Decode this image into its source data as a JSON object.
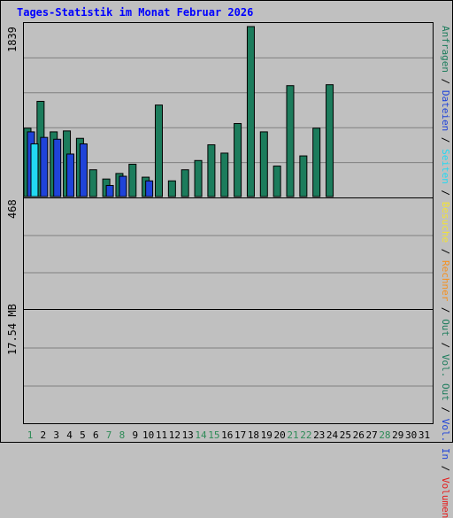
{
  "title": "Tages-Statistik im Monat Februar 2026",
  "colors": {
    "anfragen": "#1c7c5c",
    "dateien": "#1f43d9",
    "seiten": "#22d9f2",
    "besuche": "#f2e236",
    "rechner": "#f5901f",
    "volumen": "#e51b1b",
    "weekend_label": "#2e8b57",
    "weekday_label": "#000000"
  },
  "top_panel": {
    "max_label": "1839",
    "legend": [
      {
        "text": "Anfragen",
        "color": "#1c7c5c"
      },
      {
        "text": " / ",
        "color": "#000000"
      },
      {
        "text": "Dateien",
        "color": "#1f43d9"
      },
      {
        "text": " / ",
        "color": "#000000"
      },
      {
        "text": "Seiten",
        "color": "#22d9f2"
      },
      {
        "text": " / ",
        "color": "#000000"
      },
      {
        "text": "Besuche",
        "color": "#f2e236"
      },
      {
        "text": " / ",
        "color": "#000000"
      },
      {
        "text": "Rechner",
        "color": "#f5901f"
      },
      {
        "text": " / ",
        "color": "#000000"
      },
      {
        "text": "Out",
        "color": "#1c7c5c"
      },
      {
        "text": " / ",
        "color": "#000000"
      },
      {
        "text": "Vol. Out",
        "color": "#1c7c5c"
      },
      {
        "text": " / ",
        "color": "#000000"
      },
      {
        "text": "Vol. In",
        "color": "#1f43d9"
      },
      {
        "text": " / ",
        "color": "#000000"
      },
      {
        "text": "Volumen",
        "color": "#e51b1b"
      }
    ]
  },
  "mid_panel": {
    "max_label": "468"
  },
  "bottom_panel": {
    "max_label": "17.54 MB"
  },
  "chart_data": {
    "type": "bar",
    "title": "Tages-Statistik im Monat Februar 2026",
    "categories": [
      "1",
      "2",
      "3",
      "4",
      "5",
      "6",
      "7",
      "8",
      "9",
      "10",
      "11",
      "12",
      "13",
      "14",
      "15",
      "16",
      "17",
      "18",
      "19",
      "20",
      "21",
      "22",
      "23",
      "24",
      "25",
      "26",
      "27",
      "28",
      "29",
      "30",
      "31"
    ],
    "weekend_days": [
      "1",
      "7",
      "8",
      "14",
      "15",
      "21",
      "22",
      "28"
    ],
    "panels": [
      {
        "name": "requests",
        "ymax": 1839,
        "series": [
          {
            "name": "Anfragen",
            "color": "#1c7c5c",
            "values": [
              740,
              1030,
              700,
              710,
              630,
              290,
              190,
              250,
              350,
              210,
              990,
              170,
              290,
              390,
              560,
              470,
              790,
              1839,
              700,
              330,
              1200,
              440,
              740,
              1210,
              0,
              0,
              0,
              0,
              0,
              0,
              0
            ]
          },
          {
            "name": "Dateien",
            "color": "#1f43d9",
            "values": [
              700,
              640,
              620,
              460,
              570,
              0,
              120,
              220,
              0,
              170,
              0,
              0,
              0,
              0,
              0,
              0,
              0,
              0,
              0,
              0,
              0,
              0,
              0,
              0,
              0,
              0,
              0,
              0,
              0,
              0,
              0
            ]
          },
          {
            "name": "Seiten",
            "color": "#22d9f2",
            "values": [
              570,
              0,
              0,
              0,
              0,
              0,
              0,
              0,
              0,
              0,
              0,
              0,
              0,
              0,
              0,
              0,
              0,
              0,
              0,
              0,
              0,
              0,
              0,
              0,
              0,
              0,
              0,
              0,
              0,
              0,
              0
            ]
          }
        ]
      }
    ]
  }
}
